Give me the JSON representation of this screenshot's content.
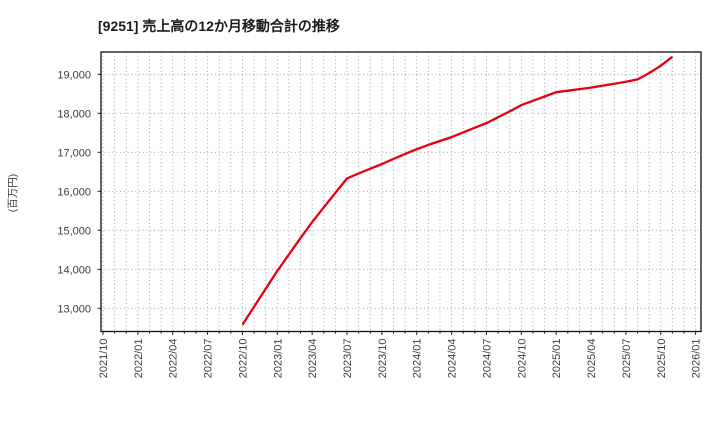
{
  "title": "[9251]  売上高の12か月移動合計の推移",
  "y_axis_label": "(百万円)",
  "chart_data": {
    "type": "line",
    "title": "[9251]  売上高の12か月移動合計の推移",
    "xlabel": "",
    "ylabel": "(百万円)",
    "grid": "dotted, vertical line every month, horizontal line every 1000",
    "legend_position": "none",
    "line_color": "#e60012",
    "x_ticks": [
      "2021/10",
      "2022/01",
      "2022/04",
      "2022/07",
      "2022/10",
      "2023/01",
      "2023/04",
      "2023/07",
      "2023/10",
      "2024/01",
      "2024/04",
      "2024/07",
      "2024/10",
      "2025/01",
      "2025/04",
      "2025/07",
      "2025/10",
      "2026/01"
    ],
    "y_ticks": [
      "13,000",
      "14,000",
      "15,000",
      "16,000",
      "17,000",
      "18,000",
      "19,000"
    ],
    "ylim": [
      12400,
      19570
    ],
    "xlim": [
      "2021/10",
      "2026/01"
    ],
    "x": [
      "2022/10",
      "2022/11",
      "2022/12",
      "2023/01",
      "2023/02",
      "2023/03",
      "2023/04",
      "2023/05",
      "2023/06",
      "2023/07",
      "2023/08",
      "2023/09",
      "2023/10",
      "2023/11",
      "2023/12",
      "2024/01",
      "2024/02",
      "2024/03",
      "2024/04",
      "2024/05",
      "2024/06",
      "2024/07",
      "2024/08",
      "2024/09",
      "2024/10",
      "2024/11",
      "2024/12",
      "2025/01",
      "2025/02",
      "2025/03",
      "2025/04",
      "2025/05",
      "2025/06",
      "2025/07",
      "2025/08",
      "2025/09",
      "2025/10",
      "2025/11"
    ],
    "values": [
      12580,
      13040,
      13500,
      13960,
      14380,
      14800,
      15210,
      15590,
      15960,
      16330,
      16460,
      16580,
      16700,
      16830,
      16960,
      17080,
      17190,
      17290,
      17390,
      17510,
      17630,
      17750,
      17900,
      18050,
      18210,
      18320,
      18430,
      18540,
      18580,
      18620,
      18660,
      18710,
      18760,
      18810,
      18870,
      19030,
      19220,
      19450
    ]
  }
}
